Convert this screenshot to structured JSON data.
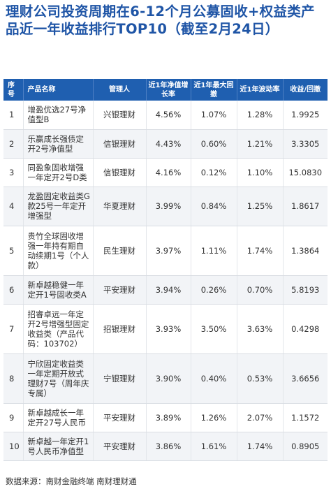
{
  "title": "理财公司投资周期在6-12个月公募固收+权益类产品近一年收益排行TOP10（截至2月24日）",
  "table": {
    "headers": [
      "序号",
      "产品名称",
      "管理人",
      "近1年净值增长率",
      "近1年最大回撤",
      "近1年波动率",
      "收益/回撤"
    ],
    "rows": [
      {
        "idx": "1",
        "name": "增盈优选27号净值型B",
        "manager": "兴银理财",
        "growth": "4.56%",
        "drawdown": "1.07%",
        "volatility": "1.28%",
        "ratio": "1.9925"
      },
      {
        "idx": "2",
        "name": "乐赢成长强债定开2号净值型",
        "manager": "信银理财",
        "growth": "4.43%",
        "drawdown": "0.60%",
        "volatility": "1.21%",
        "ratio": "3.3305"
      },
      {
        "idx": "3",
        "name": "同盈象固收增强一年定开2号D类",
        "manager": "信银理财",
        "growth": "4.16%",
        "drawdown": "0.12%",
        "volatility": "1.10%",
        "ratio": "15.0830"
      },
      {
        "idx": "4",
        "name": "龙盈固定收益类G款25号一年定开增强型",
        "manager": "华夏理财",
        "growth": "3.99%",
        "drawdown": "0.84%",
        "volatility": "1.25%",
        "ratio": "1.8617"
      },
      {
        "idx": "5",
        "name": "贵竹全球固收增强一年持有期自动续期1号（个人款）",
        "manager": "民生理财",
        "growth": "3.97%",
        "drawdown": "1.11%",
        "volatility": "1.74%",
        "ratio": "1.3864"
      },
      {
        "idx": "6",
        "name": "新卓越稳健一年定开1号固收类A",
        "manager": "平安理财",
        "growth": "3.94%",
        "drawdown": "0.26%",
        "volatility": "0.70%",
        "ratio": "5.8193"
      },
      {
        "idx": "7",
        "name": "招睿卓远一年定开2号增强型固定收益类（产品代码：103702）",
        "manager": "招银理财",
        "growth": "3.93%",
        "drawdown": "3.50%",
        "volatility": "3.63%",
        "ratio": "0.4298"
      },
      {
        "idx": "8",
        "name": "宁欣固定收益类一年定期开放式理财7号（周年庆专属）",
        "manager": "宁银理财",
        "growth": "3.90%",
        "drawdown": "0.40%",
        "volatility": "0.53%",
        "ratio": "3.6656"
      },
      {
        "idx": "9",
        "name": "新卓越成长一年定开27号人民币",
        "manager": "平安理财",
        "growth": "3.89%",
        "drawdown": "1.26%",
        "volatility": "2.07%",
        "ratio": "1.1572"
      },
      {
        "idx": "10",
        "name": "新卓越一年定开1号人民币净值型",
        "manager": "平安理财",
        "growth": "3.86%",
        "drawdown": "1.61%",
        "volatility": "1.74%",
        "ratio": "0.8905"
      }
    ]
  },
  "source": "数据来源：南财金融终端 南财理财通",
  "colors": {
    "title": "#1f55a6",
    "header_bg": "#1f5fb0",
    "stripe": "#f2f4f7"
  }
}
